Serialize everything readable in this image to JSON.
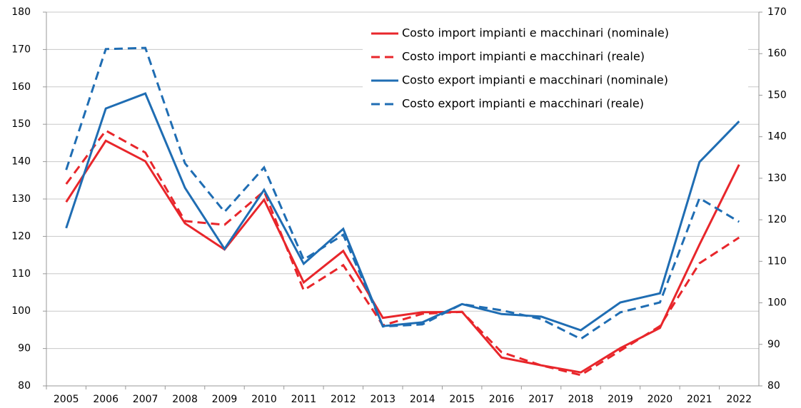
{
  "chart_data": {
    "type": "line",
    "categories": [
      "2005",
      "2006",
      "2007",
      "2008",
      "2009",
      "2010",
      "2011",
      "2012",
      "2013",
      "2014",
      "2015",
      "2016",
      "2017",
      "2018",
      "2019",
      "2020",
      "2021",
      "2022"
    ],
    "ylim": [
      80,
      180
    ],
    "yticks": [
      80,
      90,
      100,
      110,
      120,
      130,
      140,
      150,
      160,
      170,
      180
    ],
    "y2lim": [
      80,
      170
    ],
    "y2ticks": [
      80,
      90,
      100,
      110,
      120,
      130,
      140,
      150,
      160,
      170
    ],
    "grid": true,
    "legend": "top-right",
    "series": [
      {
        "name": "Costo import impianti e macchinari (nominale)",
        "color": "#e8262b",
        "style": "solid",
        "axis": "y",
        "values": [
          129.2,
          145.6,
          140.1,
          123.5,
          116.5,
          129.8,
          107.7,
          116.1,
          98.2,
          99.7,
          99.8,
          87.6,
          85.5,
          83.6,
          90.1,
          95.5,
          117.8,
          139.2
        ]
      },
      {
        "name": "Costo import impianti e macchinari (reale)",
        "color": "#e8262b",
        "style": "dashed",
        "axis": "y",
        "values": [
          134.0,
          148.3,
          142.4,
          124.1,
          123.1,
          132.1,
          105.6,
          112.3,
          96.2,
          99.3,
          99.8,
          89.0,
          85.5,
          82.9,
          89.4,
          96.0,
          112.8,
          119.7
        ]
      },
      {
        "name": "Costo export impianti e macchinari (nominale)",
        "color": "#1f6db3",
        "style": "solid",
        "axis": "y2",
        "values": [
          118.0,
          146.8,
          150.4,
          127.7,
          113.0,
          127.2,
          109.4,
          117.8,
          94.4,
          95.3,
          99.7,
          97.3,
          96.7,
          93.4,
          100.1,
          102.3,
          133.9,
          143.7
        ]
      },
      {
        "name": "Costo export impianti e macchinari (reale)",
        "color": "#1f6db3",
        "style": "dashed",
        "axis": "y2",
        "values": [
          132.0,
          161.1,
          161.4,
          133.6,
          121.9,
          132.6,
          110.4,
          116.4,
          94.3,
          94.8,
          99.7,
          98.2,
          96.1,
          91.3,
          97.7,
          100.1,
          125.2,
          119.5
        ]
      }
    ]
  }
}
